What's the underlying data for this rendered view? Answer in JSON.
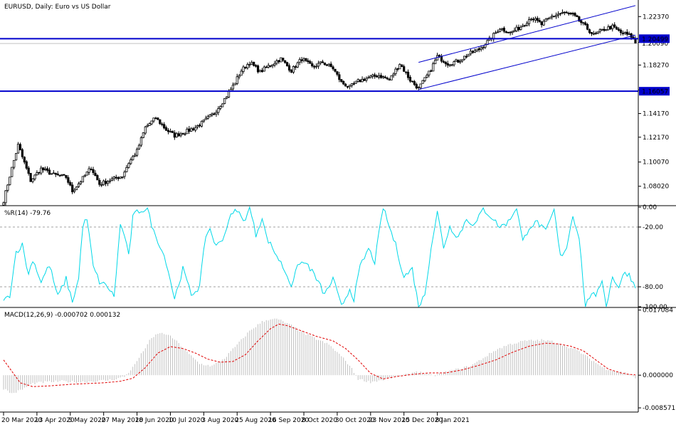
{
  "header": {
    "symbol_caption": "EURUSD, Daily:  Euro vs US Dollar",
    "wpr_caption": "%R(14) -79.76",
    "macd_caption": "MACD(12,26,9) -0.000702 0.000132"
  },
  "colors": {
    "candle": "#000000",
    "level_line": "#0000cc",
    "level_label_bg": "#0000cc",
    "level_label_text": "#ffffff",
    "channel_line": "#0000cc",
    "wpr_line": "#00d8e8",
    "wpr_level": "#a0a0a0",
    "macd_hist": "#c0c0c0",
    "macd_signal": "#e00000",
    "bid_line": "#c0c0c0",
    "separator": "#000000",
    "grid_text": "#000000"
  },
  "chart_data": [
    {
      "type": "candlestick",
      "panel": "price",
      "title": "EURUSD, Daily:  Euro vs US Dollar",
      "ylim": [
        1.065,
        1.2365
      ],
      "y_ticks": [
        "1.22370",
        "1.20190",
        "1.18270",
        "1.16170",
        "1.14170",
        "1.12170",
        "1.10070",
        "1.08020"
      ],
      "y_tick_values": [
        1.2237,
        1.2019,
        1.1827,
        1.1617,
        1.1417,
        1.1217,
        1.1007,
        1.0802
      ],
      "levels": [
        {
          "label": "1.20499",
          "value": 1.20499
        },
        {
          "label": "1.16057",
          "value": 1.16057
        }
      ],
      "current_price_label": "1.20090",
      "current_price": 1.2009,
      "channel": {
        "lower": [
          {
            "bar": 199,
            "price": 1.162
          },
          {
            "bar": 303,
            "price": 1.208
          }
        ],
        "upper": [
          {
            "bar": 199,
            "price": 1.185
          },
          {
            "bar": 303,
            "price": 1.233
          }
        ]
      },
      "anchors": [
        [
          0,
          1.068
        ],
        [
          3,
          1.089
        ],
        [
          5,
          1.102
        ],
        [
          7,
          1.115
        ],
        [
          9,
          1.105
        ],
        [
          13,
          1.085
        ],
        [
          18,
          1.095
        ],
        [
          24,
          1.09
        ],
        [
          30,
          1.088
        ],
        [
          33,
          1.076
        ],
        [
          38,
          1.087
        ],
        [
          42,
          1.096
        ],
        [
          46,
          1.082
        ],
        [
          52,
          1.086
        ],
        [
          57,
          1.089
        ],
        [
          60,
          1.1
        ],
        [
          64,
          1.11
        ],
        [
          68,
          1.13
        ],
        [
          73,
          1.138
        ],
        [
          78,
          1.128
        ],
        [
          82,
          1.123
        ],
        [
          87,
          1.126
        ],
        [
          92,
          1.13
        ],
        [
          96,
          1.135
        ],
        [
          101,
          1.142
        ],
        [
          106,
          1.154
        ],
        [
          110,
          1.165
        ],
        [
          114,
          1.178
        ],
        [
          118,
          1.185
        ],
        [
          123,
          1.177
        ],
        [
          128,
          1.183
        ],
        [
          133,
          1.188
        ],
        [
          138,
          1.178
        ],
        [
          143,
          1.188
        ],
        [
          148,
          1.181
        ],
        [
          153,
          1.185
        ],
        [
          158,
          1.18
        ],
        [
          162,
          1.168
        ],
        [
          166,
          1.164
        ],
        [
          170,
          1.169
        ],
        [
          175,
          1.172
        ],
        [
          180,
          1.174
        ],
        [
          185,
          1.17
        ],
        [
          190,
          1.184
        ],
        [
          195,
          1.17
        ],
        [
          199,
          1.163
        ],
        [
          204,
          1.176
        ],
        [
          208,
          1.19
        ],
        [
          213,
          1.184
        ],
        [
          218,
          1.186
        ],
        [
          223,
          1.192
        ],
        [
          228,
          1.196
        ],
        [
          233,
          1.204
        ],
        [
          238,
          1.214
        ],
        [
          243,
          1.21
        ],
        [
          248,
          1.215
        ],
        [
          253,
          1.223
        ],
        [
          258,
          1.217
        ],
        [
          263,
          1.224
        ],
        [
          268,
          1.227
        ],
        [
          273,
          1.225
        ],
        [
          278,
          1.217
        ],
        [
          283,
          1.208
        ],
        [
          288,
          1.213
        ],
        [
          292,
          1.215
        ],
        [
          296,
          1.21
        ],
        [
          299,
          1.2085
        ],
        [
          301,
          1.207
        ],
        [
          303,
          1.2015
        ]
      ]
    },
    {
      "type": "line",
      "panel": "wpr",
      "title": "%R(14) -79.76",
      "ylim": [
        -100,
        0
      ],
      "y_ticks": [
        "0.00",
        "-20.00",
        "-80.00",
        "-100.00"
      ],
      "y_tick_values": [
        0,
        -20,
        -80,
        -100
      ],
      "levels": [
        -20,
        -80
      ],
      "anchors": [
        [
          0,
          -95
        ],
        [
          3,
          -88
        ],
        [
          6,
          -45
        ],
        [
          9,
          -38
        ],
        [
          12,
          -68
        ],
        [
          14,
          -52
        ],
        [
          18,
          -75
        ],
        [
          22,
          -58
        ],
        [
          26,
          -90
        ],
        [
          30,
          -72
        ],
        [
          33,
          -95
        ],
        [
          36,
          -72
        ],
        [
          38,
          -18
        ],
        [
          40,
          -12
        ],
        [
          43,
          -60
        ],
        [
          46,
          -75
        ],
        [
          50,
          -80
        ],
        [
          53,
          -90
        ],
        [
          56,
          -18
        ],
        [
          58,
          -28
        ],
        [
          60,
          -50
        ],
        [
          62,
          -10
        ],
        [
          64,
          -5
        ],
        [
          66,
          -3
        ],
        [
          69,
          -2
        ],
        [
          72,
          -25
        ],
        [
          75,
          -38
        ],
        [
          78,
          -55
        ],
        [
          82,
          -92
        ],
        [
          86,
          -62
        ],
        [
          90,
          -88
        ],
        [
          94,
          -80
        ],
        [
          97,
          -28
        ],
        [
          99,
          -22
        ],
        [
          102,
          -40
        ],
        [
          106,
          -28
        ],
        [
          108,
          -12
        ],
        [
          112,
          -2
        ],
        [
          115,
          -15
        ],
        [
          118,
          0
        ],
        [
          121,
          -28
        ],
        [
          124,
          -10
        ],
        [
          126,
          -30
        ],
        [
          130,
          -45
        ],
        [
          134,
          -60
        ],
        [
          138,
          -78
        ],
        [
          142,
          -55
        ],
        [
          146,
          -58
        ],
        [
          150,
          -72
        ],
        [
          154,
          -88
        ],
        [
          158,
          -72
        ],
        [
          162,
          -100
        ],
        [
          166,
          -82
        ],
        [
          168,
          -92
        ],
        [
          171,
          -60
        ],
        [
          175,
          -42
        ],
        [
          178,
          -55
        ],
        [
          182,
          0
        ],
        [
          185,
          -20
        ],
        [
          188,
          -38
        ],
        [
          192,
          -70
        ],
        [
          196,
          -62
        ],
        [
          199,
          -100
        ],
        [
          202,
          -88
        ],
        [
          205,
          -40
        ],
        [
          208,
          -5
        ],
        [
          211,
          -40
        ],
        [
          214,
          -20
        ],
        [
          218,
          -30
        ],
        [
          222,
          -12
        ],
        [
          226,
          -18
        ],
        [
          230,
          -2
        ],
        [
          234,
          -10
        ],
        [
          238,
          -20
        ],
        [
          242,
          -15
        ],
        [
          246,
          0
        ],
        [
          249,
          -35
        ],
        [
          252,
          -20
        ],
        [
          256,
          -15
        ],
        [
          260,
          -25
        ],
        [
          264,
          -3
        ],
        [
          267,
          -50
        ],
        [
          270,
          -40
        ],
        [
          273,
          -8
        ],
        [
          276,
          -30
        ],
        [
          279,
          -100
        ],
        [
          282,
          -85
        ],
        [
          284,
          -92
        ],
        [
          287,
          -72
        ],
        [
          289,
          -100
        ],
        [
          292,
          -70
        ],
        [
          295,
          -80
        ],
        [
          298,
          -65
        ],
        [
          300,
          -68
        ],
        [
          303,
          -80
        ]
      ]
    },
    {
      "type": "bar_line",
      "panel": "macd",
      "title": "MACD(12,26,9) -0.000702 0.000132",
      "ylim": [
        -0.0093,
        0.0174
      ],
      "y_ticks": [
        "0.017084",
        "0.000000",
        "-0.008571"
      ],
      "y_tick_values": [
        0.017084,
        0.0,
        -0.008571
      ],
      "histogram_anchors": [
        [
          0,
          -0.0035
        ],
        [
          4,
          -0.0048
        ],
        [
          8,
          -0.004
        ],
        [
          14,
          -0.0022
        ],
        [
          20,
          -0.0018
        ],
        [
          28,
          -0.0016
        ],
        [
          36,
          -0.0018
        ],
        [
          44,
          -0.0016
        ],
        [
          52,
          -0.0012
        ],
        [
          58,
          -0.0004
        ],
        [
          62,
          0.002
        ],
        [
          66,
          0.0055
        ],
        [
          70,
          0.009
        ],
        [
          74,
          0.011
        ],
        [
          78,
          0.0108
        ],
        [
          82,
          0.0094
        ],
        [
          88,
          0.006
        ],
        [
          94,
          0.003
        ],
        [
          100,
          0.0024
        ],
        [
          106,
          0.0044
        ],
        [
          112,
          0.008
        ],
        [
          118,
          0.0116
        ],
        [
          124,
          0.014
        ],
        [
          128,
          0.0148
        ],
        [
          132,
          0.0146
        ],
        [
          138,
          0.013
        ],
        [
          144,
          0.011
        ],
        [
          150,
          0.0095
        ],
        [
          156,
          0.008
        ],
        [
          162,
          0.005
        ],
        [
          166,
          0.0025
        ],
        [
          170,
          -0.001
        ],
        [
          176,
          -0.0018
        ],
        [
          182,
          -0.0012
        ],
        [
          188,
          -0.0004
        ],
        [
          194,
          0.0002
        ],
        [
          198,
          0.001
        ],
        [
          202,
          0.0004
        ],
        [
          206,
          -0.0002
        ],
        [
          212,
          0.0008
        ],
        [
          218,
          0.0016
        ],
        [
          224,
          0.0024
        ],
        [
          230,
          0.0045
        ],
        [
          236,
          0.0066
        ],
        [
          242,
          0.008
        ],
        [
          250,
          0.009
        ],
        [
          258,
          0.0092
        ],
        [
          264,
          0.0088
        ],
        [
          270,
          0.0076
        ],
        [
          276,
          0.0062
        ],
        [
          282,
          0.004
        ],
        [
          288,
          0.0018
        ],
        [
          294,
          0.001
        ],
        [
          300,
          0.0004
        ],
        [
          303,
          -0.0007
        ]
      ],
      "signal_anchors": [
        [
          0,
          0.004
        ],
        [
          4,
          0.001
        ],
        [
          8,
          -0.002
        ],
        [
          14,
          -0.003
        ],
        [
          22,
          -0.0028
        ],
        [
          32,
          -0.0024
        ],
        [
          40,
          -0.0022
        ],
        [
          48,
          -0.002
        ],
        [
          56,
          -0.0016
        ],
        [
          62,
          -0.0008
        ],
        [
          68,
          0.002
        ],
        [
          74,
          0.0058
        ],
        [
          80,
          0.0075
        ],
        [
          86,
          0.007
        ],
        [
          92,
          0.0058
        ],
        [
          98,
          0.0042
        ],
        [
          104,
          0.0034
        ],
        [
          110,
          0.0036
        ],
        [
          116,
          0.0054
        ],
        [
          122,
          0.009
        ],
        [
          128,
          0.0122
        ],
        [
          132,
          0.0134
        ],
        [
          136,
          0.013
        ],
        [
          142,
          0.0118
        ],
        [
          150,
          0.0102
        ],
        [
          158,
          0.009
        ],
        [
          164,
          0.007
        ],
        [
          170,
          0.004
        ],
        [
          176,
          0.0005
        ],
        [
          182,
          -0.001
        ],
        [
          188,
          -0.0004
        ],
        [
          196,
          0.0002
        ],
        [
          204,
          0.0006
        ],
        [
          212,
          0.0006
        ],
        [
          220,
          0.0014
        ],
        [
          228,
          0.0026
        ],
        [
          236,
          0.004
        ],
        [
          244,
          0.006
        ],
        [
          252,
          0.0076
        ],
        [
          260,
          0.0084
        ],
        [
          266,
          0.0082
        ],
        [
          272,
          0.0076
        ],
        [
          278,
          0.0064
        ],
        [
          284,
          0.004
        ],
        [
          290,
          0.0016
        ],
        [
          296,
          0.0006
        ],
        [
          300,
          0.0002
        ],
        [
          303,
          0.0001
        ]
      ]
    }
  ],
  "time_axis": {
    "bar_count": 304,
    "labels": [
      {
        "bar": 0,
        "text": "20 Mar 2020"
      },
      {
        "bar": 16,
        "text": "13 Apr 2020"
      },
      {
        "bar": 32,
        "text": "5 May 2020"
      },
      {
        "bar": 48,
        "text": "27 May 2020"
      },
      {
        "bar": 64,
        "text": "18 Jun 2020"
      },
      {
        "bar": 80,
        "text": "10 Jul 2020"
      },
      {
        "bar": 96,
        "text": "3 Aug 2020"
      },
      {
        "bar": 112,
        "text": "25 Aug 2020"
      },
      {
        "bar": 128,
        "text": "16 Sep 2020"
      },
      {
        "bar": 144,
        "text": "8 Oct 2020"
      },
      {
        "bar": 160,
        "text": "30 Oct 2020"
      },
      {
        "bar": 176,
        "text": "23 Nov 2020"
      },
      {
        "bar": 192,
        "text": "15 Dec 2020"
      },
      {
        "bar": 208,
        "text": "8 Jan 2021"
      }
    ]
  }
}
